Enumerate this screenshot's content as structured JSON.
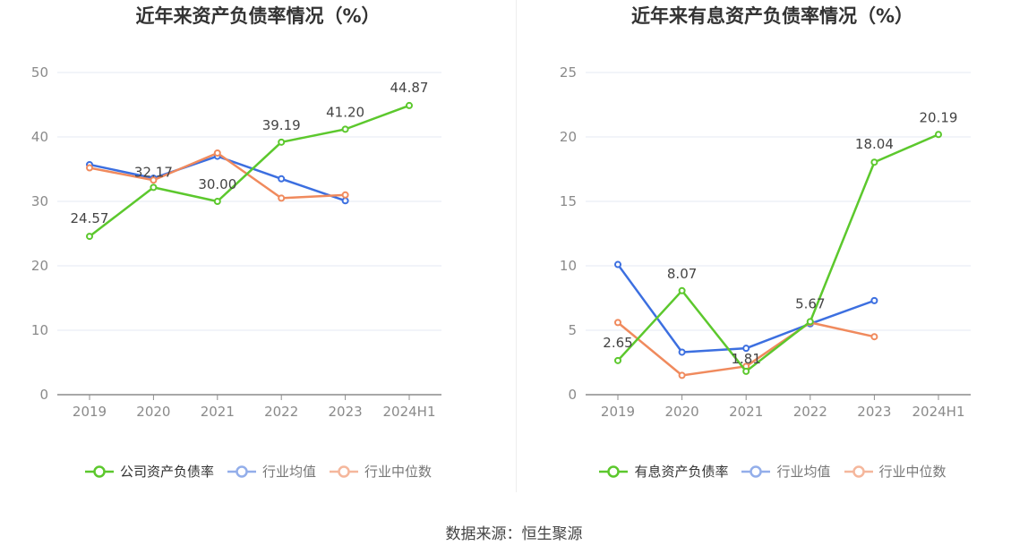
{
  "source_text": "数据来源：恒生聚源",
  "colors": {
    "company": "#5cc82d",
    "avg": "#3c6fe0",
    "median": "#f08a5d"
  },
  "chart_data": [
    {
      "type": "line",
      "title": "近年来资产负债率情况（%）",
      "categories": [
        "2019",
        "2020",
        "2021",
        "2022",
        "2023",
        "2024H1"
      ],
      "y_ticks": [
        "0",
        "10",
        "20",
        "30",
        "40",
        "50"
      ],
      "ylim": [
        0,
        50
      ],
      "series": [
        {
          "name": "公司资产负债率",
          "values": [
            24.57,
            32.17,
            30.0,
            39.19,
            41.2,
            44.87
          ],
          "labels": [
            "24.57",
            "32.17",
            "30.00",
            "39.19",
            "41.20",
            "44.87"
          ]
        },
        {
          "name": "行业均值",
          "values": [
            35.7,
            33.6,
            37.0,
            33.5,
            30.1,
            null
          ]
        },
        {
          "name": "行业中位数",
          "values": [
            35.2,
            33.3,
            37.5,
            30.5,
            31.0,
            null
          ]
        }
      ]
    },
    {
      "type": "line",
      "title": "近年来有息资产负债率情况（%）",
      "categories": [
        "2019",
        "2020",
        "2021",
        "2022",
        "2023",
        "2024H1"
      ],
      "y_ticks": [
        "0",
        "5",
        "10",
        "15",
        "20",
        "25"
      ],
      "ylim": [
        0,
        25
      ],
      "series": [
        {
          "name": "有息资产负债率",
          "values": [
            2.65,
            8.07,
            1.81,
            5.67,
            18.04,
            20.19
          ],
          "labels": [
            "2.65",
            "8.07",
            "1.81",
            "5.67",
            "18.04",
            "20.19"
          ]
        },
        {
          "name": "行业均值",
          "values": [
            10.1,
            3.3,
            3.6,
            5.5,
            7.3,
            null
          ]
        },
        {
          "name": "行业中位数",
          "values": [
            5.6,
            1.5,
            2.2,
            5.6,
            4.5,
            null
          ]
        }
      ]
    }
  ]
}
